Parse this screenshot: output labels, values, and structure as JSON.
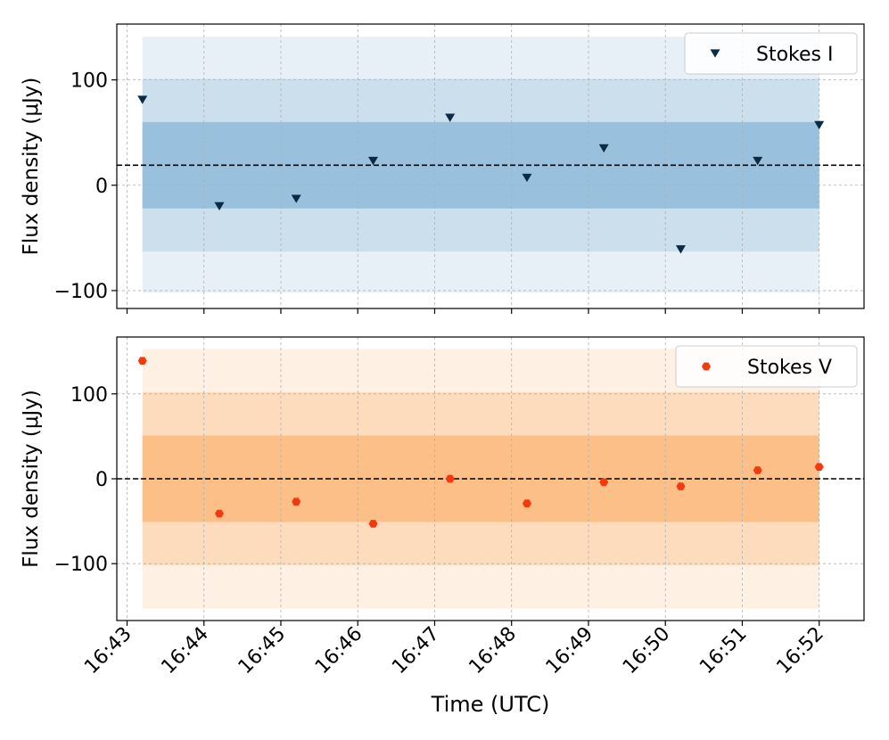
{
  "chart_data": [
    {
      "type": "scatter",
      "panel": "top",
      "ylabel": "Flux density (μJy)",
      "ylim": [
        -117,
        153
      ],
      "yticks": [
        -100,
        0,
        100
      ],
      "ytick_labels": [
        "−100",
        "0",
        "100"
      ],
      "grid": true,
      "legend_position": "top-right",
      "mean_line": 19,
      "bands": [
        {
          "y0": -102,
          "y1": 141,
          "color": "#e8f0f7"
        },
        {
          "y0": -63,
          "y1": 101,
          "color": "#cbdfec"
        },
        {
          "y0": -22,
          "y1": 60,
          "color": "#99c0dd"
        }
      ],
      "series": [
        {
          "name": "Stokes I",
          "marker": "triangle-down",
          "color": "#0b2a44",
          "x": [
            "16:43:12",
            "16:44:12",
            "16:45:12",
            "16:46:12",
            "16:47:12",
            "16:48:12",
            "16:49:12",
            "16:50:12",
            "16:51:12",
            "16:52:00"
          ],
          "y": [
            81,
            -20,
            -13,
            23,
            64,
            7,
            35,
            -61,
            23,
            57
          ]
        }
      ]
    },
    {
      "type": "scatter",
      "panel": "bottom",
      "ylabel": "Flux density (μJy)",
      "ylim": [
        -167,
        167
      ],
      "yticks": [
        -100,
        0,
        100
      ],
      "ytick_labels": [
        "−100",
        "0",
        "100"
      ],
      "grid": true,
      "legend_position": "top-right",
      "mean_line": 0,
      "bands": [
        {
          "y0": -153,
          "y1": 153,
          "color": "#fef1e3"
        },
        {
          "y0": -102,
          "y1": 102,
          "color": "#fddcbd"
        },
        {
          "y0": -51,
          "y1": 51,
          "color": "#fdbf88"
        }
      ],
      "series": [
        {
          "name": "Stokes V",
          "marker": "hexagon",
          "color": "#f4390f",
          "x": [
            "16:43:12",
            "16:44:12",
            "16:45:12",
            "16:46:12",
            "16:47:12",
            "16:48:12",
            "16:49:12",
            "16:50:12",
            "16:51:12",
            "16:52:00"
          ],
          "y": [
            139,
            -41,
            -27,
            -53,
            0,
            -29,
            -4,
            -9,
            10,
            14
          ]
        }
      ]
    }
  ],
  "xaxis": {
    "xlabel": "Time (UTC)",
    "xlim": [
      "16:42:52",
      "16:52:35"
    ],
    "ticks": [
      "16:43",
      "16:44",
      "16:45",
      "16:46",
      "16:47",
      "16:48",
      "16:49",
      "16:50",
      "16:51",
      "16:52"
    ]
  },
  "colors": {
    "grid": "#b0b0b0",
    "axes": "#000000",
    "mean_line": "#000000",
    "legend_border": "#cccccc"
  }
}
